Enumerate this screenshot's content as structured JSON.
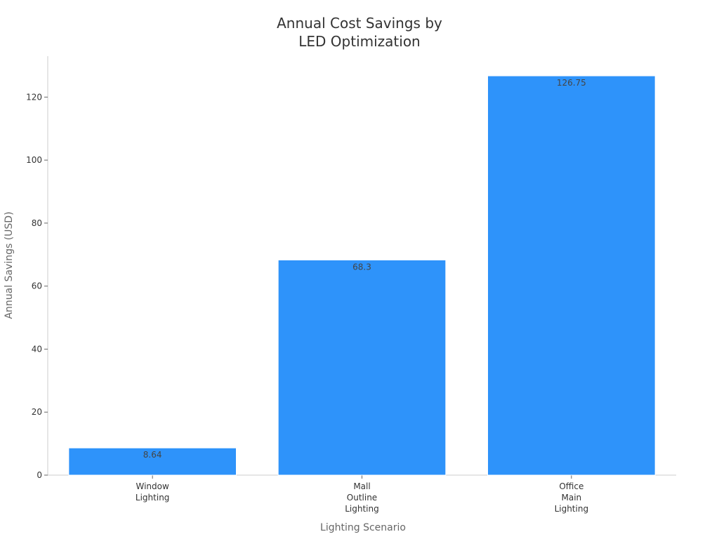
{
  "chart_data": {
    "type": "bar",
    "title_lines": [
      "Annual Cost Savings by",
      "LED Optimization"
    ],
    "xlabel": "Lighting Scenario",
    "ylabel": "Annual Savings (USD)",
    "ylim": [
      0,
      133
    ],
    "yticks": [
      0,
      20,
      40,
      60,
      80,
      100,
      120
    ],
    "grid": false,
    "bar_color": "#2e93fa",
    "categories": [
      [
        "Window",
        "Lighting"
      ],
      [
        "Mall",
        "Outline",
        "Lighting"
      ],
      [
        "Office",
        "Main",
        "Lighting"
      ]
    ],
    "values": [
      8.64,
      68.3,
      126.75
    ],
    "data_labels": [
      "8.64",
      "68.3",
      "126.75"
    ]
  }
}
